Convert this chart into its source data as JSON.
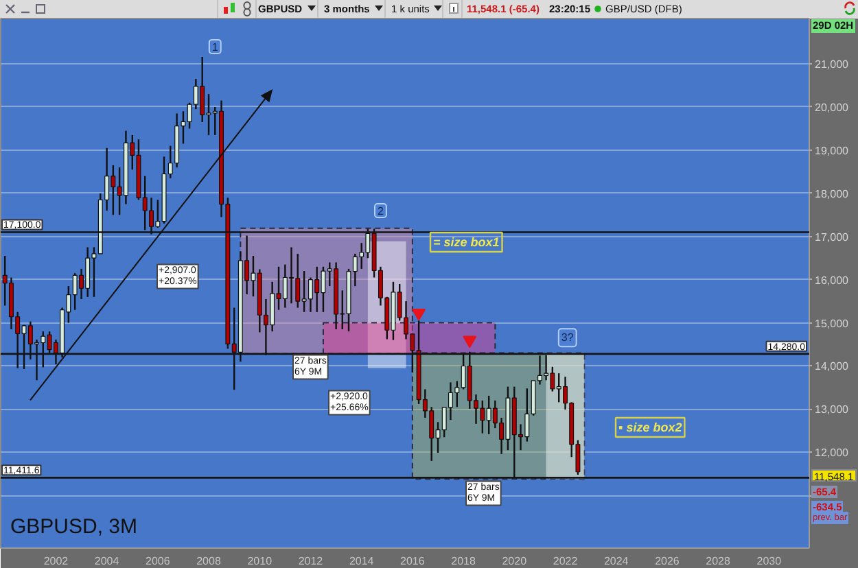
{
  "chart_data": {
    "type": "candlestick",
    "title": "GBPUSD, 3M",
    "x": [
      "2000-01",
      "2000-04",
      "2000-07",
      "2000-10",
      "2001-01",
      "2001-04",
      "2001-07",
      "2001-10",
      "2002-01",
      "2002-04",
      "2002-07",
      "2002-10",
      "2003-01",
      "2003-04",
      "2003-07",
      "2003-10",
      "2004-01",
      "2004-04",
      "2004-07",
      "2004-10",
      "2005-01",
      "2005-04",
      "2005-07",
      "2005-10",
      "2006-01",
      "2006-04",
      "2006-07",
      "2006-10",
      "2007-01",
      "2007-04",
      "2007-07",
      "2007-10",
      "2008-01",
      "2008-04",
      "2008-07",
      "2008-10",
      "2009-01",
      "2009-04",
      "2009-07",
      "2009-10",
      "2010-01",
      "2010-04",
      "2010-07",
      "2010-10",
      "2011-01",
      "2011-04",
      "2011-07",
      "2011-10",
      "2012-01",
      "2012-04",
      "2012-07",
      "2012-10",
      "2013-01",
      "2013-04",
      "2013-07",
      "2013-10",
      "2014-01",
      "2014-04",
      "2014-07",
      "2014-10",
      "2015-01",
      "2015-04",
      "2015-07",
      "2015-10",
      "2016-01",
      "2016-04",
      "2016-07",
      "2016-10",
      "2017-01",
      "2017-04",
      "2017-07",
      "2017-10",
      "2018-01",
      "2018-04",
      "2018-07",
      "2018-10",
      "2019-01",
      "2019-04",
      "2019-07",
      "2019-10",
      "2020-01",
      "2020-04",
      "2020-07",
      "2020-10",
      "2021-01",
      "2021-04",
      "2021-07",
      "2021-10",
      "2022-01",
      "2022-04",
      "2022-07"
    ],
    "ohlc": [
      [
        16100,
        16550,
        15400,
        15920
      ],
      [
        15920,
        16050,
        14850,
        15140
      ],
      [
        15140,
        15250,
        13950,
        14750
      ],
      [
        14750,
        14950,
        13930,
        14930
      ],
      [
        14930,
        15030,
        14150,
        14510
      ],
      [
        14510,
        14610,
        13670,
        14540
      ],
      [
        14540,
        14800,
        13970,
        14690
      ],
      [
        14720,
        14800,
        14300,
        14380
      ],
      [
        14540,
        14610,
        14040,
        14300
      ],
      [
        14300,
        15350,
        14200,
        15300
      ],
      [
        15250,
        15850,
        15000,
        15650
      ],
      [
        15650,
        16150,
        15300,
        16100
      ],
      [
        16100,
        16250,
        15550,
        15800
      ],
      [
        15800,
        16750,
        15600,
        16500
      ],
      [
        16500,
        16750,
        15600,
        16600
      ],
      [
        16600,
        18000,
        16600,
        17850
      ],
      [
        17850,
        19050,
        17600,
        18400
      ],
      [
        18400,
        18650,
        17500,
        18150
      ],
      [
        18150,
        18600,
        17500,
        17950
      ],
      [
        17950,
        19450,
        17750,
        19170
      ],
      [
        19170,
        19350,
        18550,
        18880
      ],
      [
        18880,
        19250,
        17850,
        17900
      ],
      [
        17900,
        18400,
        17150,
        17600
      ],
      [
        17600,
        17900,
        17050,
        17230
      ],
      [
        17230,
        17850,
        17200,
        17350
      ],
      [
        17350,
        18850,
        17300,
        18450
      ],
      [
        18450,
        19100,
        18350,
        18700
      ],
      [
        18700,
        19850,
        18600,
        19560
      ],
      [
        19560,
        19900,
        19150,
        19660
      ],
      [
        19660,
        20100,
        19500,
        20060
      ],
      [
        20060,
        20650,
        19950,
        20480
      ],
      [
        20480,
        21160,
        19650,
        19820
      ],
      [
        19820,
        20300,
        19350,
        19860
      ],
      [
        19860,
        20000,
        19350,
        19900
      ],
      [
        19900,
        20150,
        17450,
        17750
      ],
      [
        17750,
        17900,
        14400,
        14510
      ],
      [
        14510,
        15350,
        13450,
        14320
      ],
      [
        14320,
        16650,
        14100,
        16440
      ],
      [
        16440,
        17020,
        15660,
        15980
      ],
      [
        15980,
        16550,
        15610,
        16150
      ],
      [
        16150,
        16240,
        14780,
        15180
      ],
      [
        15180,
        15550,
        14250,
        14950
      ],
      [
        14950,
        15950,
        14800,
        15680
      ],
      [
        15680,
        16300,
        15300,
        15560
      ],
      [
        15560,
        16350,
        15350,
        16050
      ],
      [
        16050,
        16750,
        15450,
        16030
      ],
      [
        16030,
        16600,
        15350,
        15500
      ],
      [
        15500,
        16200,
        15250,
        15550
      ],
      [
        15550,
        16050,
        15250,
        16000
      ],
      [
        16000,
        16300,
        15250,
        15700
      ],
      [
        15700,
        16300,
        15250,
        16200
      ],
      [
        16200,
        16400,
        15850,
        16250
      ],
      [
        16250,
        16400,
        14850,
        15200
      ],
      [
        15200,
        15750,
        14850,
        15210
      ],
      [
        15210,
        16250,
        14800,
        16190
      ],
      [
        16190,
        16600,
        15850,
        16530
      ],
      [
        16530,
        16850,
        16250,
        16630
      ],
      [
        16630,
        17180,
        16500,
        17070
      ],
      [
        17070,
        17180,
        16050,
        16210
      ],
      [
        16210,
        16300,
        15400,
        15580
      ],
      [
        15580,
        15600,
        14620,
        14830
      ],
      [
        14830,
        15950,
        14600,
        15710
      ],
      [
        15710,
        15900,
        15050,
        15120
      ],
      [
        15120,
        15500,
        14620,
        14740
      ],
      [
        14740,
        14750,
        13850,
        14360
      ],
      [
        14360,
        15050,
        13120,
        13220
      ],
      [
        13220,
        13460,
        12800,
        12960
      ],
      [
        12960,
        13050,
        11800,
        12330
      ],
      [
        12330,
        12700,
        11990,
        12520
      ],
      [
        12520,
        13050,
        12350,
        13040
      ],
      [
        13040,
        13620,
        12750,
        13380
      ],
      [
        13380,
        13650,
        13050,
        13500
      ],
      [
        13500,
        14300,
        13460,
        14000
      ],
      [
        14000,
        14330,
        13010,
        13200
      ],
      [
        13200,
        13340,
        12660,
        13020
      ],
      [
        13020,
        13200,
        12440,
        12740
      ],
      [
        12740,
        13310,
        12420,
        13020
      ],
      [
        13020,
        13200,
        12560,
        12680
      ],
      [
        12680,
        12800,
        11960,
        12300
      ],
      [
        12300,
        13520,
        12050,
        13260
      ],
      [
        13260,
        13520,
        11412,
        12410
      ],
      [
        12410,
        12650,
        12050,
        12360
      ],
      [
        12360,
        13480,
        12250,
        12890
      ],
      [
        12890,
        13660,
        12850,
        13660
      ],
      [
        13660,
        14240,
        13570,
        13780
      ],
      [
        13780,
        14250,
        13670,
        13830
      ],
      [
        13830,
        13980,
        13410,
        13470
      ],
      [
        13470,
        13830,
        13160,
        13520
      ],
      [
        13520,
        13750,
        12990,
        13140
      ],
      [
        13140,
        13160,
        11890,
        12183
      ],
      [
        12183,
        12280,
        11480,
        11548
      ]
    ],
    "colors": [
      "#b30000",
      "#b30000",
      "#b30000",
      "#d6ecdf",
      "#b30000",
      "#d6ecdf",
      "#d6ecdf",
      "#b30000",
      "#b30000",
      "#d6ecdf",
      "#d6ecdf",
      "#d6ecdf",
      "#b30000",
      "#d6ecdf",
      "#d6ecdf",
      "#d6ecdf",
      "#d6ecdf",
      "#b30000",
      "#b30000",
      "#d6ecdf",
      "#b30000",
      "#b30000",
      "#b30000",
      "#b30000",
      "#d6ecdf",
      "#d6ecdf",
      "#d6ecdf",
      "#d6ecdf",
      "#d6ecdf",
      "#d6ecdf",
      "#d6ecdf",
      "#b30000",
      "#d6ecdf",
      "#d6ecdf",
      "#b30000",
      "#b30000",
      "#b30000",
      "#d6ecdf",
      "#b30000",
      "#d6ecdf",
      "#b30000",
      "#b30000",
      "#d6ecdf",
      "#b30000",
      "#d6ecdf",
      "#b30000",
      "#b30000",
      "#d6ecdf",
      "#d6ecdf",
      "#b30000",
      "#d6ecdf",
      "#d6ecdf",
      "#b30000",
      "#d6ecdf",
      "#d6ecdf",
      "#d6ecdf",
      "#d6ecdf",
      "#d6ecdf",
      "#b30000",
      "#b30000",
      "#b30000",
      "#d6ecdf",
      "#b30000",
      "#b30000",
      "#b30000",
      "#b30000",
      "#b30000",
      "#b30000",
      "#d6ecdf",
      "#d6ecdf",
      "#d6ecdf",
      "#d6ecdf",
      "#d6ecdf",
      "#b30000",
      "#b30000",
      "#b30000",
      "#d6ecdf",
      "#b30000",
      "#b30000",
      "#d6ecdf",
      "#b30000",
      "#b30000",
      "#d6ecdf",
      "#d6ecdf",
      "#d6ecdf",
      "#d6ecdf",
      "#b30000",
      "#d6ecdf",
      "#b30000",
      "#b30000",
      "#b30000"
    ],
    "xlim": [
      "1999-11",
      "2031-08"
    ],
    "xticks": [
      "2002",
      "2004",
      "2006",
      "2008",
      "2010",
      "2012",
      "2014",
      "2016",
      "2018",
      "2020",
      "2022",
      "2024",
      "2026",
      "2028",
      "2030"
    ],
    "ylim": [
      9780,
      22050
    ],
    "yticks": [
      {
        "value": 11000,
        "label": null
      },
      {
        "value": 12000,
        "label": "12,000"
      },
      {
        "value": 13000,
        "label": "13,000"
      },
      {
        "value": 14000,
        "label": "14,000"
      },
      {
        "value": 15000,
        "label": "15,000"
      },
      {
        "value": 16000,
        "label": "16,000"
      },
      {
        "value": 17000,
        "label": "17,000"
      },
      {
        "value": 18000,
        "label": "18,000"
      },
      {
        "value": 19000,
        "label": "19,000"
      },
      {
        "value": 20000,
        "label": "20,000"
      },
      {
        "value": 21000,
        "label": "21,000"
      }
    ],
    "grid": "y",
    "ref_lines": [
      {
        "axis": "y",
        "value": 17100,
        "label": "17,100.0",
        "color": "#141414"
      },
      {
        "axis": "y",
        "value": 14280,
        "label": "14,280.0",
        "color": "#141414"
      },
      {
        "axis": "y",
        "value": 11411.6,
        "label": "11,411.6",
        "color": "#141414"
      }
    ],
    "series": [
      {
        "type": "line",
        "color": "#e08a9c",
        "x": [
          "2009-04",
          "2016-01"
        ],
        "values": [
          null,
          null
        ],
        "lower": [
          14280,
          14280
        ],
        "upper": [
          17190,
          17190
        ],
        "line_style": "dashed"
      },
      {
        "type": "line",
        "color": "#ffffff",
        "x": [
          "2014-04",
          "2015-10"
        ],
        "values": [
          null,
          null
        ],
        "lower": [
          13950,
          13950
        ],
        "upper": [
          16890,
          16890
        ]
      },
      {
        "type": "line",
        "color": "#e23c8e",
        "x": [
          "2012-07",
          "2019-04"
        ],
        "values": [
          null,
          null
        ],
        "lower": [
          14280,
          14280
        ],
        "upper": [
          15000,
          15000
        ],
        "line_style": "dashed"
      },
      {
        "type": "line",
        "color": "#aab452",
        "x": [
          "2016-01",
          "2022-10"
        ],
        "values": [
          null,
          null
        ],
        "lower": [
          11380,
          11380
        ],
        "upper": [
          14300,
          14300
        ],
        "line_style": "dashed"
      },
      {
        "type": "line",
        "color": "#ffffff",
        "x": [
          "2021-04",
          "2022-10"
        ],
        "values": [
          null,
          null
        ],
        "lower": [
          11380,
          11380
        ],
        "upper": [
          14300,
          14300
        ]
      },
      {
        "type": "scatter",
        "marker": "triangle",
        "color": "#e8141b",
        "x": [
          "2016-04",
          "2018-04"
        ],
        "values": [
          15230,
          14600
        ]
      }
    ],
    "annotations": [
      {
        "text": "1",
        "x": "2008-04",
        "y": 21400
      },
      {
        "text": "2",
        "x": "2014-10",
        "y": 17600
      },
      {
        "text": "3?",
        "x": "2022-02",
        "y": 14655
      },
      "GBPUSD",
      "3 months",
      "1 k units",
      "11,548.1 (-65.4)",
      "23:20:15",
      "GBP/USD (DFB)",
      "29D 02H",
      "11,548.1",
      "-65.4",
      "-634.5",
      "prev. bar",
      "+2,907.0\n+20.37%",
      "27 bars\n6Y 9M",
      "+2,920.0\n+25.66%",
      "27 bars\n6Y 9M",
      "= size box1",
      "▪ size box2"
    ]
  }
}
